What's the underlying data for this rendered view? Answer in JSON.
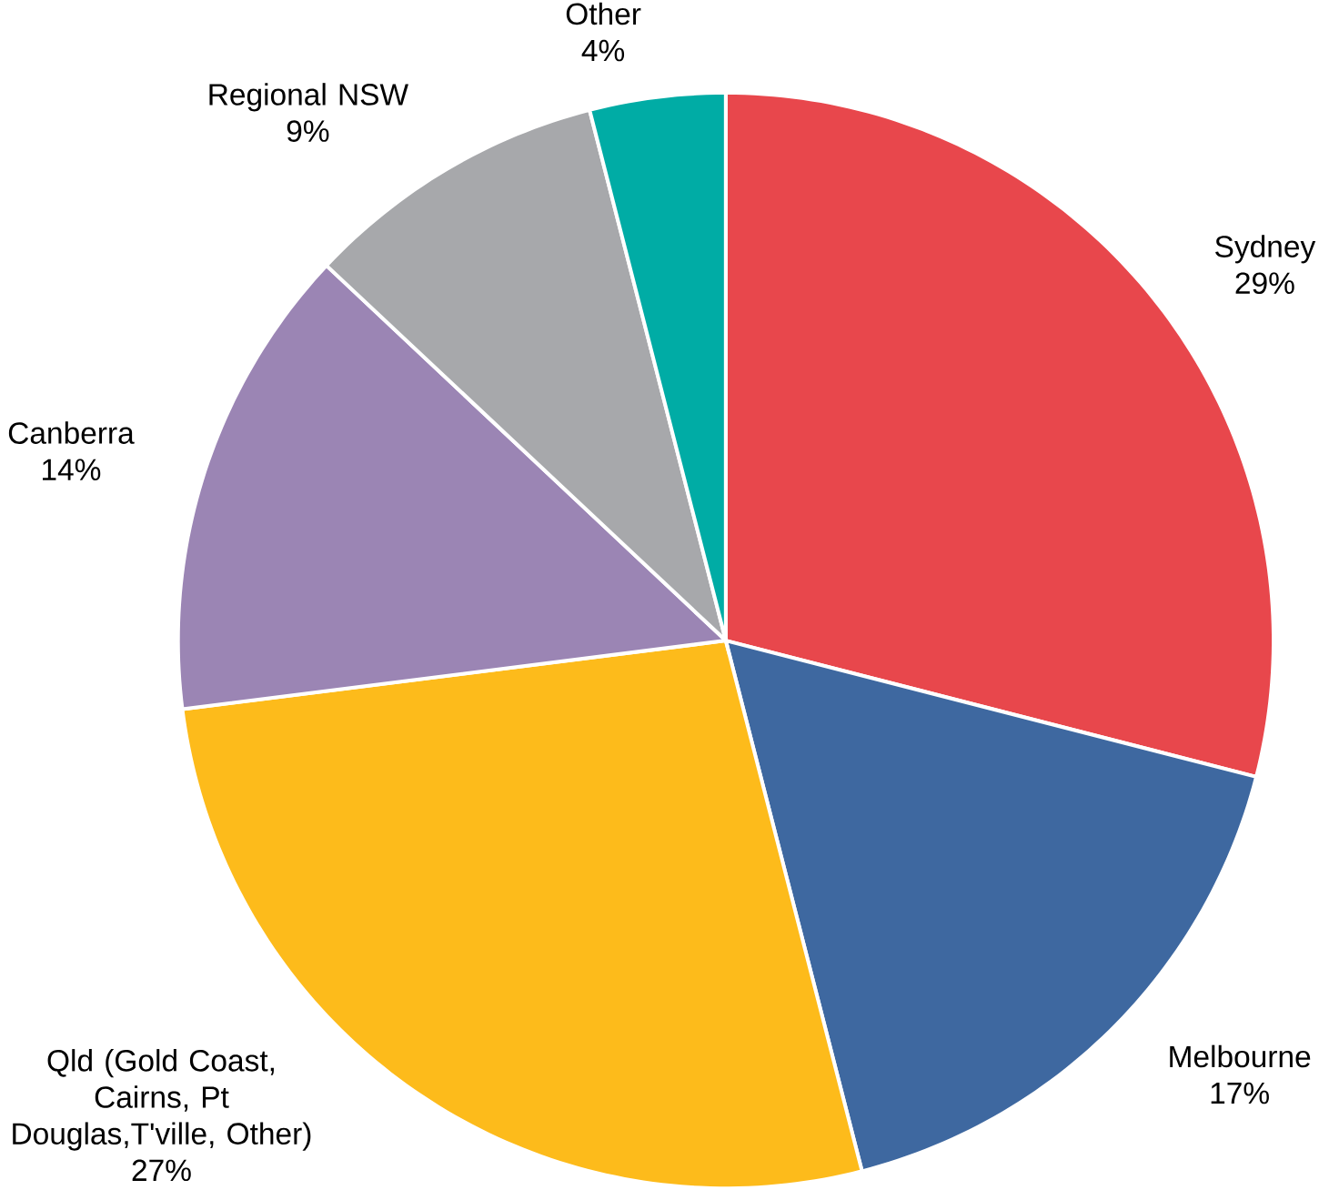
{
  "chart_data": {
    "type": "pie",
    "categories": [
      "Sydney",
      "Melbourne",
      "Qld (Gold Coast, Cairns, Pt Douglas,T'ville, Other)",
      "Canberra",
      "Regional NSW",
      "Other"
    ],
    "values": [
      29,
      17,
      27,
      14,
      9,
      4
    ],
    "value_labels": [
      "29%",
      "17%",
      "27%",
      "14%",
      "9%",
      "4%"
    ],
    "colors": [
      "#e8474c",
      "#3e68a0",
      "#fdbb1b",
      "#9b85b4",
      "#a7a8ab",
      "#00aca5"
    ]
  }
}
